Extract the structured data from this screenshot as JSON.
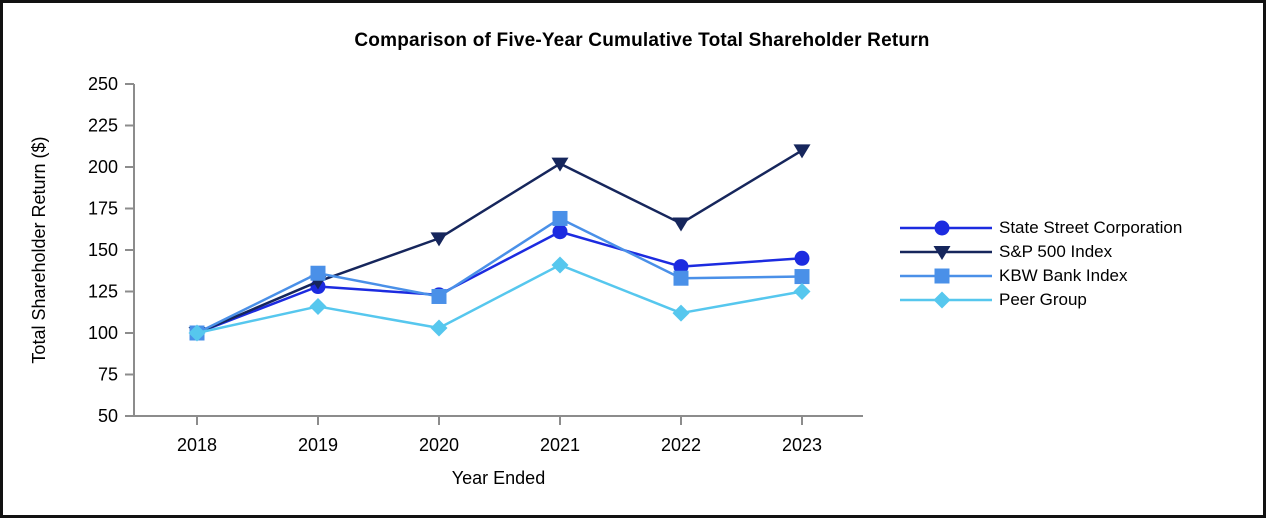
{
  "frame": {
    "background": "#ffffff",
    "border_color": "#111111"
  },
  "chart_data": {
    "type": "line",
    "title": "Comparison of Five-Year Cumulative Total Shareholder Return",
    "xlabel": "Year Ended",
    "ylabel": "Total Shareholder Return ($)",
    "categories": [
      "2018",
      "2019",
      "2020",
      "2021",
      "2022",
      "2023"
    ],
    "series": [
      {
        "name": "State Street Corporation",
        "marker": "circle",
        "color": "#1c2be0",
        "values": [
          100,
          128,
          123,
          161,
          140,
          145
        ]
      },
      {
        "name": "S&P 500 Index",
        "marker": "triangle-down",
        "color": "#16265c",
        "values": [
          100,
          131,
          157,
          202,
          166,
          210
        ]
      },
      {
        "name": "KBW Bank Index",
        "marker": "square",
        "color": "#4a90e8",
        "values": [
          100,
          136,
          122,
          169,
          133,
          134
        ]
      },
      {
        "name": "Peer Group",
        "marker": "diamond",
        "color": "#56c7ee",
        "values": [
          100,
          116,
          103,
          141,
          112,
          125
        ]
      }
    ],
    "ylim": [
      50,
      250
    ],
    "yticks": [
      250,
      225,
      200,
      175,
      150,
      125,
      100,
      75,
      50
    ],
    "grid": false,
    "legend_position": "right",
    "axis_color": "#8c8c8c",
    "text_color": "#000000"
  }
}
